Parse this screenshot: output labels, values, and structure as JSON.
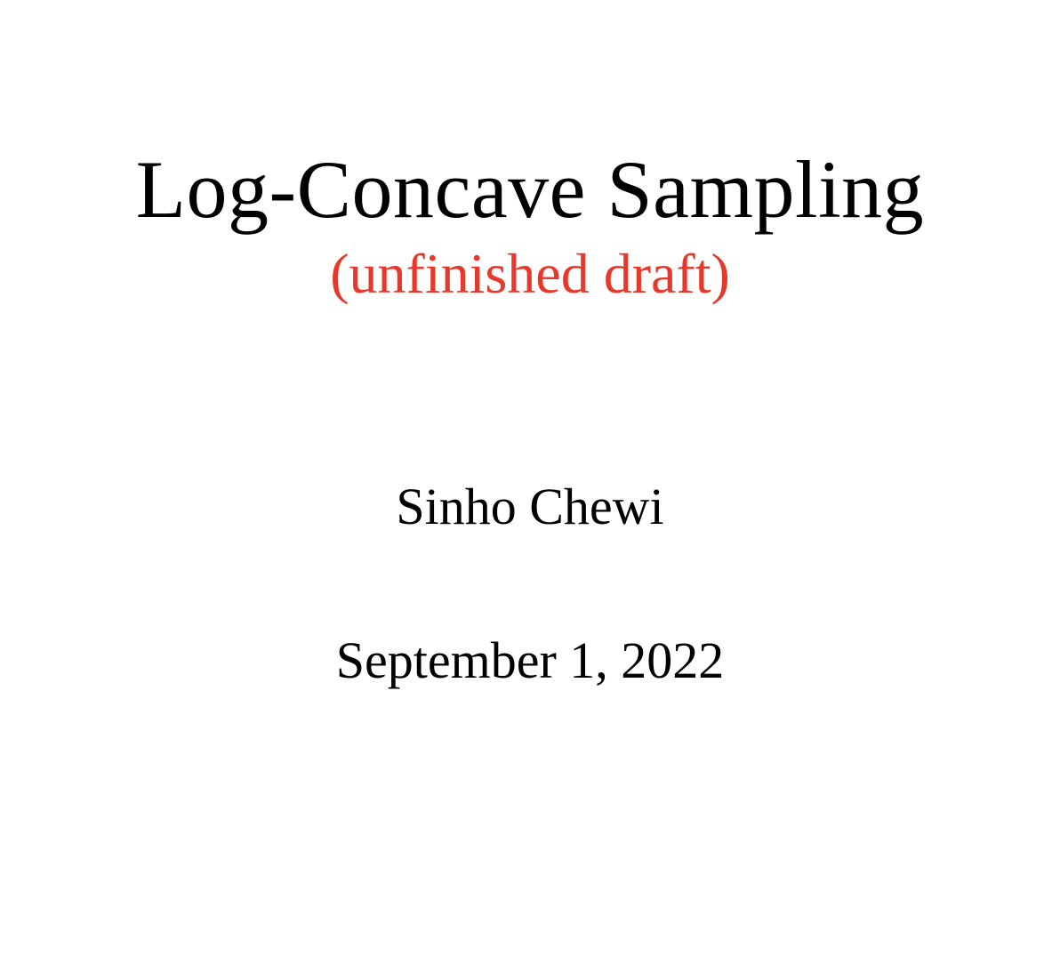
{
  "document": {
    "title": "Log-Concave Sampling",
    "subtitle": "(unfinished draft)",
    "author": "Sinho Chewi",
    "date": "September 1, 2022"
  },
  "colors": {
    "text": "#000000",
    "subtitle": "#e8382b",
    "background": "#ffffff"
  }
}
